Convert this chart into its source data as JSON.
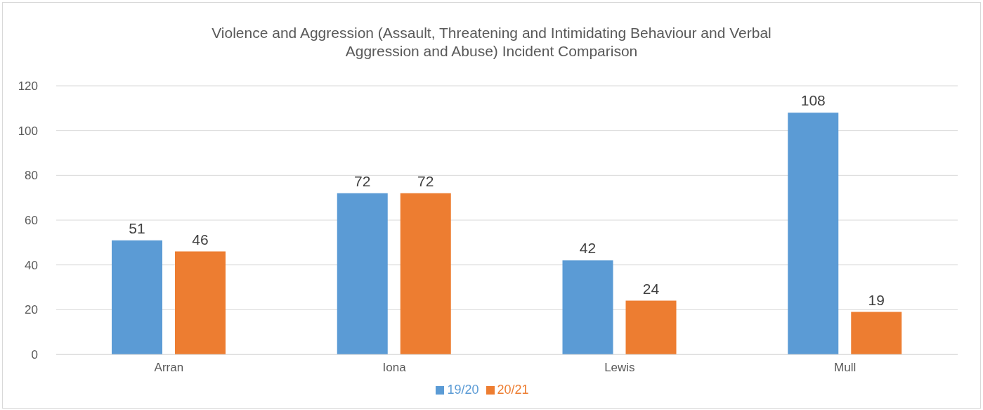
{
  "chart_data": {
    "type": "bar",
    "title": "Violence and Aggression (Assault, Threatening and Intimidating Behaviour and Verbal Aggression and Abuse) Incident Comparison",
    "categories": [
      "Arran",
      "Iona",
      "Lewis",
      "Mull"
    ],
    "series": [
      {
        "name": "19/20",
        "color": "#5b9bd5",
        "values": [
          51,
          72,
          42,
          108
        ]
      },
      {
        "name": "20/21",
        "color": "#ed7d31",
        "values": [
          46,
          72,
          24,
          19
        ]
      }
    ],
    "ylim": [
      0,
      120
    ],
    "yticks": [
      0,
      20,
      40,
      60,
      80,
      100,
      120
    ],
    "grid": "y",
    "legend": "bottom",
    "data_labels": true
  }
}
